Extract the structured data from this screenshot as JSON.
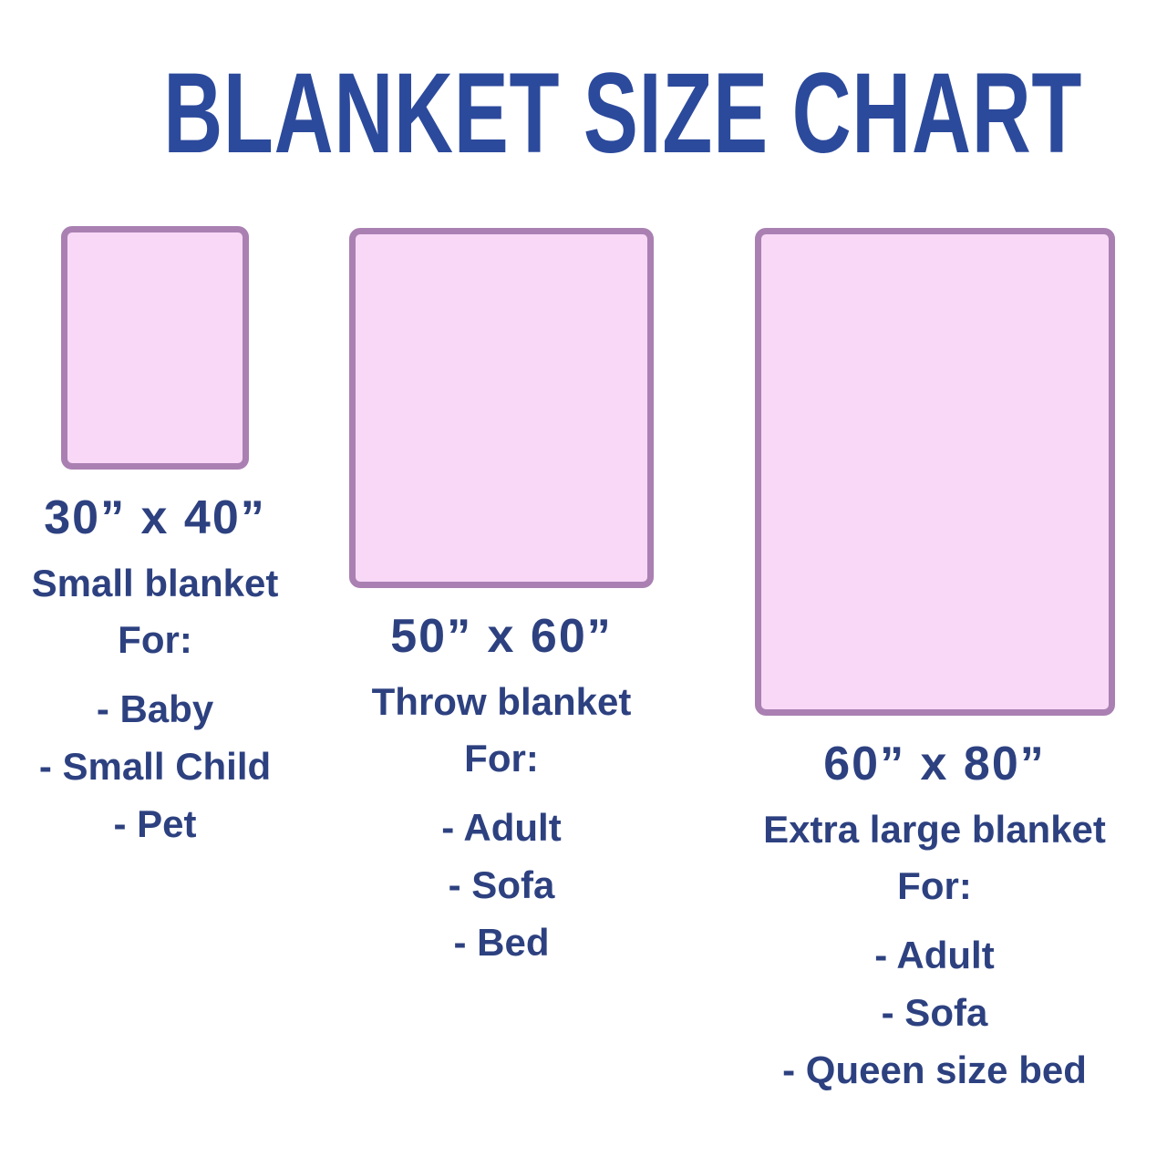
{
  "title": "BLANKET SIZE CHART",
  "colors": {
    "title_blue": "#2c4a9c",
    "text_navy": "#2d4180",
    "blanket_fill": "#f8d8f6",
    "blanket_border": "#aa80b2"
  },
  "blankets": [
    {
      "size_label": "30” x 40”",
      "width_inches": 30,
      "height_inches": 40,
      "name": "Small blanket",
      "for_label": "For:",
      "uses": [
        "- Baby",
        "- Small Child",
        "- Pet"
      ]
    },
    {
      "size_label": "50” x 60”",
      "width_inches": 50,
      "height_inches": 60,
      "name": "Throw blanket",
      "for_label": "For:",
      "uses": [
        "- Adult",
        "- Sofa",
        "- Bed"
      ]
    },
    {
      "size_label": "60” x 80”",
      "width_inches": 60,
      "height_inches": 80,
      "name": "Extra large blanket",
      "for_label": "For:",
      "uses": [
        "- Adult",
        "- Sofa",
        "- Queen size bed"
      ]
    }
  ]
}
